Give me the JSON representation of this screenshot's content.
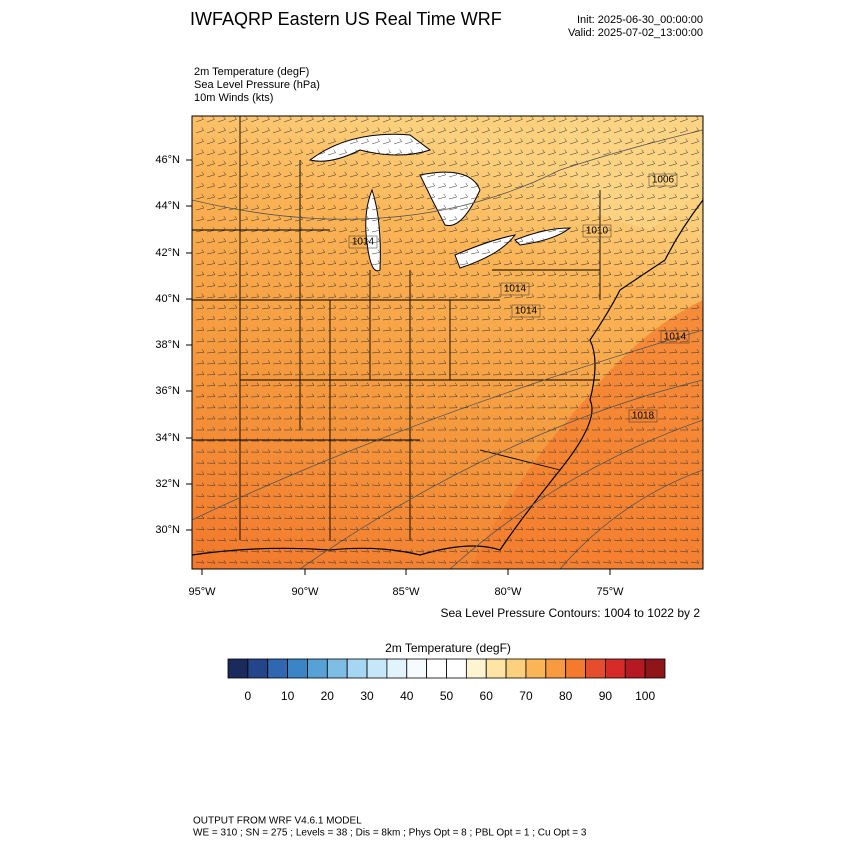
{
  "header": {
    "title": "IWFAQRP Eastern US Real Time WRF",
    "init": "Init: 2025-06-30_00:00:00",
    "valid": "Valid: 2025-07-02_13:00:00",
    "fields": [
      "2m Temperature   (degF)",
      "Sea Level Pressure   (hPa)",
      "10m Winds   (kts)"
    ]
  },
  "map": {
    "lat_labels": [
      "46°N",
      "44°N",
      "42°N",
      "40°N",
      "38°N",
      "36°N",
      "34°N",
      "32°N",
      "30°N"
    ],
    "lon_labels": [
      "95°W",
      "90°W",
      "85°W",
      "80°W",
      "75°W"
    ],
    "contour_labels": [
      "1006",
      "1010",
      "1014",
      "1014",
      "1014",
      "1014",
      "1018"
    ],
    "contour_note": "Sea Level Pressure Contours: 1004 to 1022 by 2"
  },
  "colorbar": {
    "title": "2m Temperature  (degF)",
    "ticks": [
      0,
      10,
      20,
      30,
      40,
      50,
      60,
      70,
      80,
      90,
      100
    ],
    "colors": [
      "#1b2a5c",
      "#24448b",
      "#2f67b1",
      "#3b84c5",
      "#57a1d7",
      "#7dbde6",
      "#a6d7f2",
      "#c6e7f7",
      "#e1f3fb",
      "#f6fbfe",
      "#ffffff",
      "#ffffff",
      "#fff4d1",
      "#fee5a5",
      "#fdd07d",
      "#fbb456",
      "#f89a3f",
      "#f47a2d",
      "#e54e2c",
      "#d62b26",
      "#b51a22",
      "#8f1519"
    ]
  },
  "footer": {
    "line1": "OUTPUT FROM WRF V4.6.1 MODEL",
    "line2": "WE = 310 ; SN = 275 ; Levels = 38 ; Dis = 8km ; Phys Opt = 8 ; PBL Opt = 1 ; Cu Opt = 3"
  }
}
